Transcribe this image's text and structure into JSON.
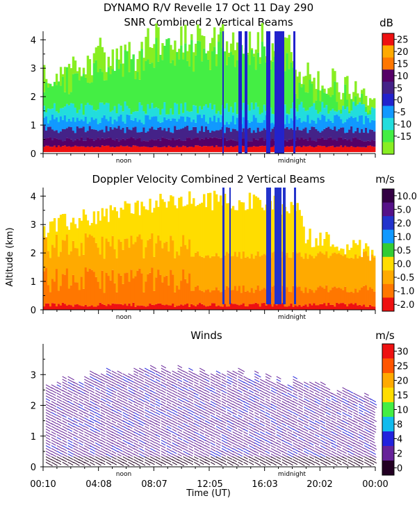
{
  "header": {
    "line1": "DYNAMO R/V Revelle  17 Oct 11 Day 290"
  },
  "shared": {
    "ylabel": "Altitude (km)",
    "xlabel": "Time (UT)",
    "noon_label": "noon",
    "midnight_label": "midnight",
    "x_tick_labels": [
      "00:10",
      "04:08",
      "08:07",
      "12:05",
      "16:03",
      "20:02",
      "00:00"
    ]
  },
  "colors": {
    "snr_scale": [
      "#ee1111",
      "#ffaa00",
      "#ff7700",
      "#550066",
      "#442288",
      "#2222cc",
      "#1199ff",
      "#22dddd",
      "#44ee44",
      "#88ee22"
    ],
    "vel_scale": [
      "#330044",
      "#551188",
      "#2233cc",
      "#1199ff",
      "#33cc33",
      "#ffdd00",
      "#ffaa00",
      "#ff7700",
      "#ee1111"
    ],
    "wind_scale": [
      "#ee1111",
      "#ff5500",
      "#ffaa00",
      "#ffdd00",
      "#44ee44",
      "#11bbee",
      "#2222dd",
      "#662299",
      "#220022"
    ]
  },
  "chart_data": [
    {
      "type": "heatmap",
      "title": "SNR Combined 2 Vertical Beams",
      "xlabel": "",
      "ylabel": "",
      "ylim": [
        0,
        4.3
      ],
      "y_ticks": [
        "0",
        "1",
        "2",
        "3",
        "4"
      ],
      "colorbar": {
        "unit": "dB",
        "labels": [
          "25",
          "20",
          "15",
          "10",
          "5",
          "0",
          "-5",
          "-10",
          "-15"
        ]
      }
    },
    {
      "type": "heatmap",
      "title": "Doppler Velocity Combined 2 Vertical Beams",
      "xlabel": "",
      "ylabel": "Altitude (km)",
      "ylim": [
        0,
        4.3
      ],
      "y_ticks": [
        "0",
        "1",
        "2",
        "3",
        "4"
      ],
      "colorbar": {
        "unit": "m/s",
        "labels": [
          "10.0",
          "5.0",
          "2.0",
          "1.0",
          "0.5",
          "0.0",
          "-0.5",
          "-1.0",
          "-2.0"
        ]
      }
    },
    {
      "type": "scatter",
      "title": "Winds",
      "xlabel": "Time (UT)",
      "ylabel": "",
      "ylim": [
        0,
        4
      ],
      "y_ticks": [
        "0",
        "1",
        "2",
        "3"
      ],
      "colorbar": {
        "unit": "m/s",
        "labels": [
          "30",
          "25",
          "20",
          "15",
          "10",
          "8",
          "4",
          "2",
          "0"
        ]
      }
    }
  ]
}
